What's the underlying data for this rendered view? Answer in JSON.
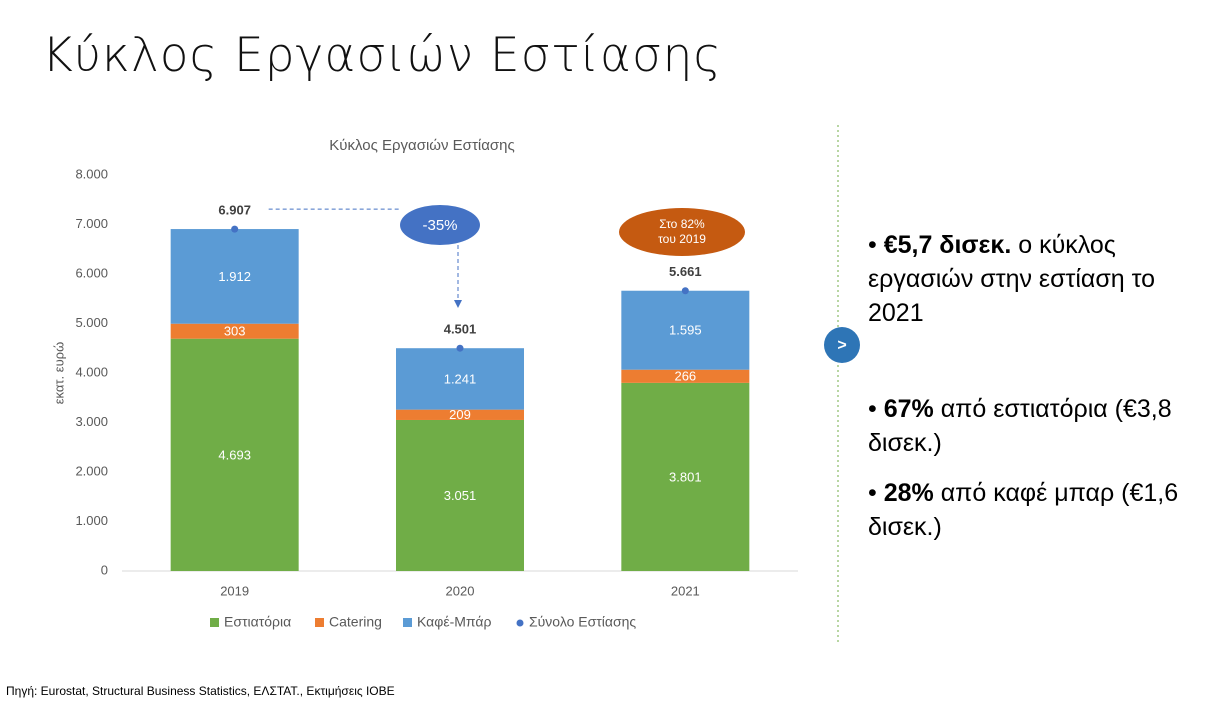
{
  "slide_title": "Κύκλος Εργασιών Εστίασης",
  "chart_data": {
    "type": "bar",
    "stacked": true,
    "title": "Κύκλος Εργασιών Εστίασης",
    "y_label": "εκατ. ευρώ",
    "categories": [
      "2019",
      "2020",
      "2021"
    ],
    "series": [
      {
        "name": "Εστιατόρια",
        "color": "#70ad47",
        "values": [
          4693,
          3051,
          3801
        ],
        "value_labels": [
          "4.693",
          "3.051",
          "3.801"
        ]
      },
      {
        "name": "Catering",
        "color": "#ed7d31",
        "values": [
          303,
          209,
          266
        ]
      },
      {
        "name": "Καφέ-Μπάρ",
        "color": "#5b9bd5",
        "values": [
          1912,
          1241,
          1595
        ],
        "value_labels": [
          "1.912",
          "1.241",
          "1.595"
        ]
      }
    ],
    "total": {
      "name": "Σύνολο Εστίασης",
      "color": "#4472c4",
      "values": [
        6907,
        4501,
        5661
      ],
      "value_labels": [
        "6.907",
        "4.501",
        "5.661"
      ]
    },
    "ylim": [
      0,
      8000
    ],
    "yticks": [
      0,
      {
        "value": 1000,
        "label": "1.000"
      },
      {
        "value": 2000,
        "label": "2.000"
      },
      {
        "value": 3000,
        "label": "3.000"
      },
      {
        "value": 4000,
        "label": "4.000"
      },
      {
        "value": 5000,
        "label": "5.000"
      },
      {
        "value": 6000,
        "label": "6.000"
      },
      {
        "value": 7000,
        "label": "7.000"
      },
      {
        "value": 8000,
        "label": "8.000"
      }
    ],
    "annotations": {
      "change": "-35%",
      "recovery": [
        "Στο 82%",
        "του 2019"
      ]
    }
  },
  "arrow": ">",
  "bullets": [
    {
      "bold": "€5,7 δισεκ.",
      "text": " ο κύκλος εργασιών στην εστίαση το 2021"
    },
    {
      "bold": "67%",
      "text": " από εστιατόρια (€3,8 δισεκ.)"
    },
    {
      "bold": "28%",
      "text": " από καφέ μπαρ (€1,6 δισεκ.)"
    }
  ],
  "source": "Πηγή: Eurostat, Structural Business Statistics, ΕΛΣΤΑΤ., Εκτιμήσεις ΙΟΒΕ"
}
